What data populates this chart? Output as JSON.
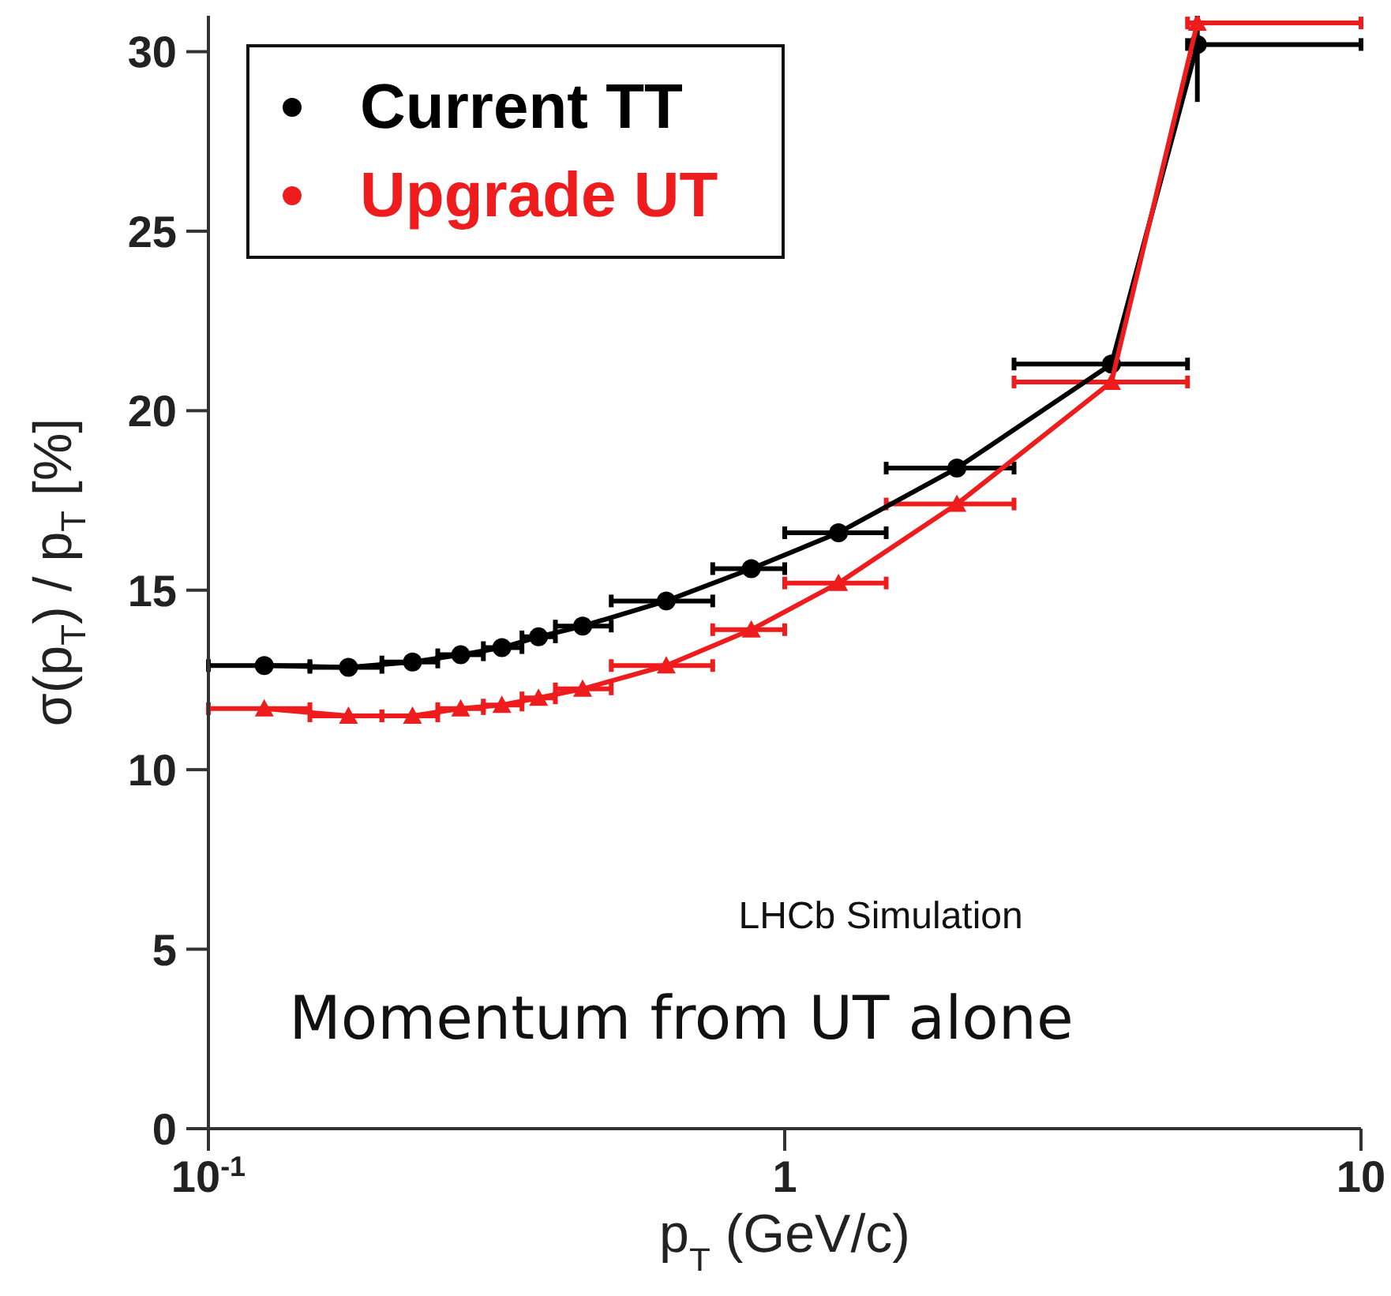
{
  "chart_data": {
    "type": "line",
    "xlabel": "p$_{T}$ (GeV/c)",
    "ylabel": "σ(p$_{T}$) / p$_{T}$  [%]",
    "log": "x",
    "xlim": [
      0.1,
      10
    ],
    "xticks": [
      {
        "value": 0.1,
        "label": "10$^{-1}$"
      },
      1,
      10
    ],
    "ylim": [
      0,
      31
    ],
    "yticks": [
      0,
      5,
      10,
      15,
      20,
      25,
      30
    ],
    "grid": false,
    "legend": "top left",
    "annotations": [
      "LHCb Simulation",
      "Momentum from UT alone"
    ],
    "x": [
      0.125,
      0.175,
      0.226,
      0.274,
      0.323,
      0.374,
      0.446,
      0.623,
      0.875,
      1.24,
      1.99,
      3.69,
      5.2
    ],
    "series": [
      {
        "name": "Current TT",
        "color": "#000000",
        "marker": "circle",
        "values": [
          12.9,
          12.85,
          13.0,
          13.2,
          13.4,
          13.7,
          14.0,
          14.7,
          15.6,
          16.6,
          18.4,
          21.3,
          30.2
        ],
        "xerrors": [
          [
            0.1,
            0.15
          ],
          [
            0.15,
            0.2
          ],
          [
            0.2,
            0.25
          ],
          [
            0.25,
            0.3
          ],
          [
            0.3,
            0.35
          ],
          [
            0.35,
            0.4
          ],
          [
            0.4,
            0.5
          ],
          [
            0.5,
            0.75
          ],
          [
            0.75,
            1.0
          ],
          [
            1.0,
            1.5
          ],
          [
            1.5,
            2.5
          ],
          [
            2.5,
            5
          ],
          [
            5,
            10
          ]
        ],
        "errors": [
          null,
          null,
          null,
          null,
          null,
          null,
          null,
          null,
          null,
          null,
          null,
          null,
          [
            28.6,
            31
          ]
        ]
      },
      {
        "name": "Upgrade UT",
        "color": "#ee1c1c",
        "marker": "triangle",
        "values": [
          11.7,
          11.5,
          11.5,
          11.7,
          11.8,
          12.0,
          12.25,
          12.9,
          13.9,
          15.2,
          17.4,
          20.8,
          30.8
        ],
        "xerrors": [
          [
            0.1,
            0.15
          ],
          [
            0.15,
            0.2
          ],
          [
            0.2,
            0.25
          ],
          [
            0.25,
            0.3
          ],
          [
            0.3,
            0.35
          ],
          [
            0.35,
            0.4
          ],
          [
            0.4,
            0.5
          ],
          [
            0.5,
            0.75
          ],
          [
            0.75,
            1.0
          ],
          [
            1.0,
            1.5
          ],
          [
            1.5,
            2.5
          ],
          [
            2.5,
            5
          ],
          [
            5,
            10
          ]
        ]
      }
    ]
  }
}
